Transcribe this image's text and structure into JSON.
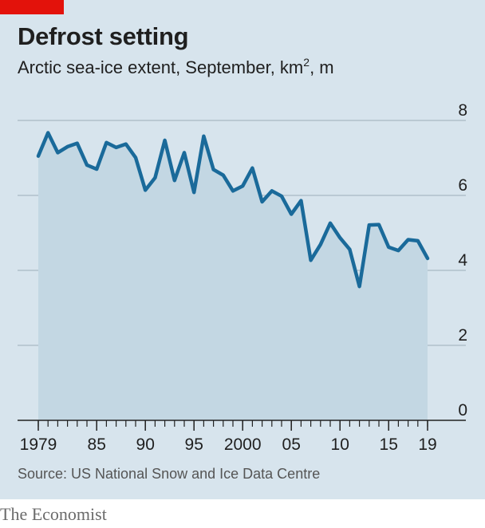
{
  "header": {
    "title": "Defrost setting",
    "subtitle_main": "Arctic sea-ice extent, September, km",
    "subtitle_sup": "2",
    "subtitle_tail": ", m"
  },
  "source": "Source: US National Snow and Ice Data Centre",
  "brand": "The Economist",
  "colors": {
    "background": "#d7e4ed",
    "line": "#1a6a9a",
    "area": "#c3d7e3",
    "grid": "#a9b9c4",
    "axis": "#222222",
    "accent": "#e3120b"
  },
  "chart_data": {
    "type": "area",
    "title": "Defrost setting",
    "subtitle": "Arctic sea-ice extent, September, km2, m",
    "xlabel": "",
    "ylabel": "km2, m",
    "xlim": [
      1979,
      2019
    ],
    "ylim": [
      0,
      8
    ],
    "y_ticks": [
      0,
      2,
      4,
      6,
      8
    ],
    "y_tick_labels": [
      "0",
      "2",
      "4",
      "6",
      "8"
    ],
    "x_tick_values": [
      1979,
      1985,
      1990,
      1995,
      2000,
      2005,
      2010,
      2015,
      2019
    ],
    "x_tick_labels": [
      "1979",
      "85",
      "90",
      "95",
      "2000",
      "05",
      "10",
      "15",
      "19"
    ],
    "grid": true,
    "x": [
      1979,
      1980,
      1981,
      1982,
      1983,
      1984,
      1985,
      1986,
      1987,
      1988,
      1989,
      1990,
      1991,
      1992,
      1993,
      1994,
      1995,
      1996,
      1997,
      1998,
      1999,
      2000,
      2001,
      2002,
      2003,
      2004,
      2005,
      2006,
      2007,
      2008,
      2009,
      2010,
      2011,
      2012,
      2013,
      2014,
      2015,
      2016,
      2017,
      2018,
      2019
    ],
    "series": [
      {
        "name": "Arctic sea-ice extent",
        "values": [
          7.05,
          7.67,
          7.14,
          7.3,
          7.39,
          6.81,
          6.7,
          7.41,
          7.28,
          7.37,
          7.01,
          6.14,
          6.47,
          7.47,
          6.4,
          7.14,
          6.08,
          7.58,
          6.69,
          6.54,
          6.12,
          6.25,
          6.73,
          5.83,
          6.12,
          5.98,
          5.5,
          5.86,
          4.27,
          4.69,
          5.26,
          4.87,
          4.56,
          3.57,
          5.21,
          5.22,
          4.62,
          4.53,
          4.82,
          4.79,
          4.32
        ]
      }
    ]
  }
}
